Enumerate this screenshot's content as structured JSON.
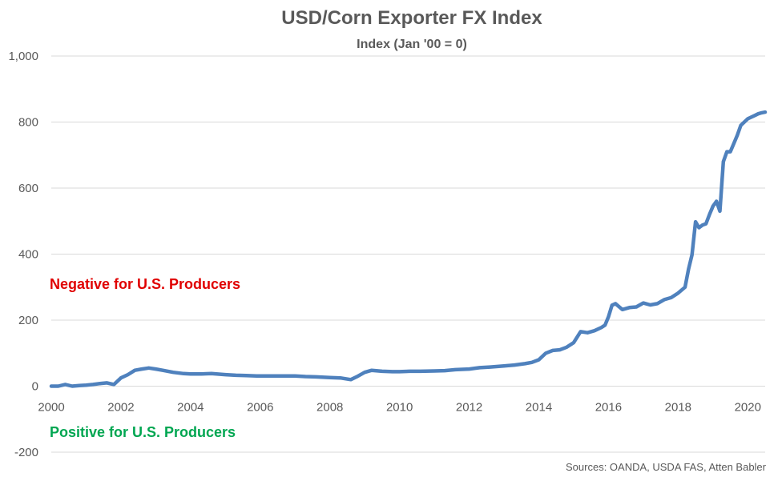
{
  "chart_data": {
    "type": "line",
    "title": "USD/Corn Exporter FX Index",
    "subtitle": "Index (Jan '00 = 0)",
    "xlabel": "",
    "ylabel": "",
    "xlim": [
      2000,
      2020.5
    ],
    "ylim": [
      -200,
      1000
    ],
    "yticks": [
      -200,
      0,
      200,
      400,
      600,
      800,
      1000
    ],
    "ytick_labels": [
      "-200",
      "0",
      "200",
      "400",
      "600",
      "800",
      "1,000"
    ],
    "xticks": [
      2000,
      2002,
      2004,
      2006,
      2008,
      2010,
      2012,
      2014,
      2016,
      2018,
      2020
    ],
    "xtick_labels": [
      "2000",
      "2002",
      "2004",
      "2006",
      "2008",
      "2010",
      "2012",
      "2014",
      "2016",
      "2018",
      "2020"
    ],
    "grid": "horizontal",
    "legend": "none",
    "series": [
      {
        "color": "#4f81bd",
        "x": [
          2000.0,
          2000.2,
          2000.4,
          2000.6,
          2000.8,
          2001.0,
          2001.2,
          2001.4,
          2001.6,
          2001.8,
          2002.0,
          2002.2,
          2002.4,
          2002.6,
          2002.8,
          2003.0,
          2003.2,
          2003.5,
          2003.8,
          2004.0,
          2004.3,
          2004.6,
          2005.0,
          2005.3,
          2005.6,
          2005.9,
          2006.2,
          2006.6,
          2007.0,
          2007.3,
          2007.6,
          2008.0,
          2008.3,
          2008.6,
          2008.8,
          2009.0,
          2009.2,
          2009.5,
          2009.8,
          2010.0,
          2010.3,
          2010.6,
          2011.0,
          2011.3,
          2011.6,
          2012.0,
          2012.3,
          2012.6,
          2013.0,
          2013.3,
          2013.6,
          2013.8,
          2014.0,
          2014.2,
          2014.4,
          2014.6,
          2014.8,
          2015.0,
          2015.2,
          2015.4,
          2015.6,
          2015.8,
          2015.9,
          2016.0,
          2016.1,
          2016.2,
          2016.4,
          2016.6,
          2016.8,
          2017.0,
          2017.2,
          2017.4,
          2017.6,
          2017.8,
          2018.0,
          2018.2,
          2018.3,
          2018.4,
          2018.5,
          2018.6,
          2018.7,
          2018.8,
          2018.9,
          2019.0,
          2019.1,
          2019.2,
          2019.3,
          2019.4,
          2019.5,
          2019.6,
          2019.7,
          2019.8,
          2020.0,
          2020.2,
          2020.3,
          2020.4,
          2020.5
        ],
        "y": [
          0,
          0,
          5,
          0,
          2,
          3,
          5,
          8,
          10,
          5,
          25,
          35,
          48,
          52,
          55,
          52,
          48,
          42,
          38,
          37,
          37,
          38,
          35,
          33,
          32,
          31,
          31,
          31,
          31,
          29,
          28,
          26,
          25,
          20,
          30,
          42,
          48,
          45,
          44,
          44,
          45,
          45,
          46,
          47,
          50,
          52,
          56,
          58,
          61,
          64,
          68,
          72,
          80,
          100,
          108,
          110,
          118,
          132,
          165,
          162,
          168,
          178,
          185,
          210,
          245,
          250,
          232,
          238,
          240,
          252,
          246,
          250,
          262,
          268,
          282,
          300,
          355,
          398,
          498,
          480,
          488,
          492,
          520,
          545,
          560,
          530,
          680,
          710,
          710,
          735,
          760,
          790,
          810,
          820,
          825,
          828,
          830
        ]
      }
    ],
    "annotations": [
      {
        "text": "Negative for U.S. Producers",
        "color": "#e00000"
      },
      {
        "text": "Positive for U.S. Producers",
        "color": "#00a651"
      }
    ],
    "source": "Sources: OANDA, USDA FAS, Atten Babler"
  }
}
